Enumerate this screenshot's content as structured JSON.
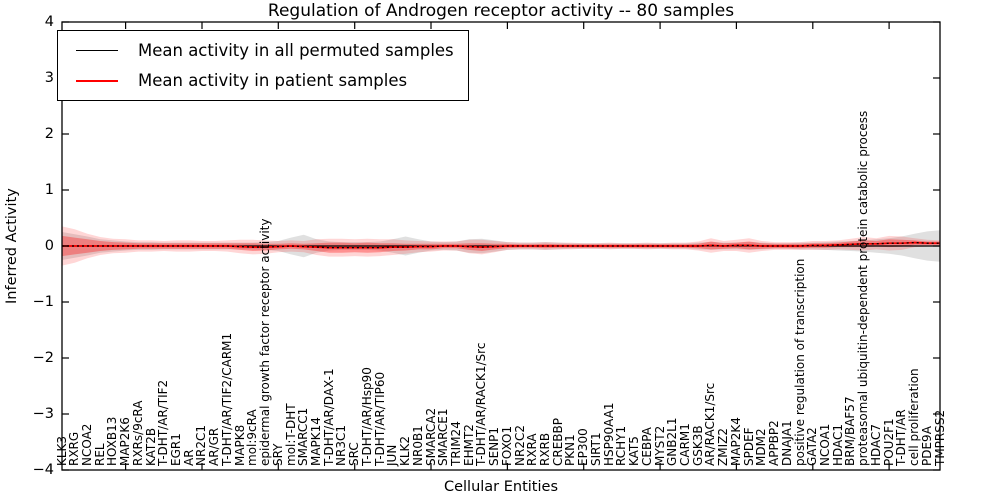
{
  "window": {
    "background": "#ffffff"
  },
  "chart_data": {
    "type": "line",
    "title": "Regulation of Androgen receptor activity -- 80 samples",
    "xlabel": "Cellular Entities",
    "ylabel": "Inferred Activity",
    "ylim": [
      -4,
      4
    ],
    "yticks": [
      4,
      3,
      2,
      1,
      0,
      -1,
      -2,
      -3,
      -4
    ],
    "grid": false,
    "legend": {
      "position": "upper left",
      "entries": [
        {
          "label": "Mean activity in all permuted samples",
          "color": "#000000"
        },
        {
          "label": "Mean activity in patient samples",
          "color": "#ff0000"
        }
      ]
    },
    "categories": [
      "KLK3",
      "RXRG",
      "NCOA2",
      "REL",
      "HOXB13",
      "MAP2K6",
      "RXRs/9cRA",
      "KAT2B",
      "T-DHT/AR/TIF2",
      "EGR1",
      "AR",
      "NR2C1",
      "AR/GR",
      "T-DHT/AR/TIF2/CARM1",
      "MAPK8",
      "mol:9cRA",
      "epidermal growth factor receptor activity",
      "SRY",
      "mol:T-DHT",
      "SMARCC1",
      "MAPK14",
      "T-DHT/AR/DAX-1",
      "NR3C1",
      "SRC",
      "T-DHT/AR/Hsp90",
      "T-DHT/AR/TIP60",
      "JUN",
      "KLK2",
      "NR0B1",
      "SMARCA2",
      "SMARCE1",
      "TRIM24",
      "EHMT2",
      "T-DHT/AR/RACK1/Src",
      "SENP1",
      "FOXO1",
      "NR2C2",
      "RXRA",
      "RXRB",
      "CREBBP",
      "PKN1",
      "EP300",
      "SIRT1",
      "HSP90AA1",
      "RCHY1",
      "KAT5",
      "CEBPA",
      "MYST2",
      "GNB2L1",
      "CARM1",
      "GSK3B",
      "AR/RACK1/Src",
      "ZMIZ2",
      "MAP2K4",
      "SPDEF",
      "MDM2",
      "APPBP2",
      "DNAJA1",
      "positive regulation of transcription",
      "GATA2",
      "NCOA1",
      "HDAC1",
      "BRM/BAF57",
      "proteasomal ubiquitin-dependent protein catabolic process",
      "HDAC7",
      "POU2F1",
      "T-DHT/AR",
      "cell proliferation",
      "PDE9A",
      "TMPRSS2"
    ],
    "series": [
      {
        "name": "Mean activity in all permuted samples",
        "color": "#000000",
        "values": [
          0,
          0,
          0,
          0,
          0,
          0,
          0,
          0,
          0,
          0,
          0,
          0,
          0,
          0,
          0,
          0,
          0,
          0,
          0,
          0,
          0,
          0,
          0,
          0,
          0,
          0,
          0,
          0,
          0,
          0,
          0,
          0,
          0,
          0,
          0,
          0,
          0,
          0,
          0,
          0,
          0,
          0,
          0,
          0,
          0,
          0,
          0,
          0,
          0,
          0,
          0,
          0,
          0,
          0,
          0,
          0,
          0,
          0,
          0,
          0,
          0,
          0,
          0,
          0,
          0,
          0,
          0,
          0,
          0,
          0
        ]
      },
      {
        "name": "Mean activity in patient samples",
        "color": "#ff0000",
        "values": [
          0,
          0,
          0,
          0,
          0,
          0,
          0,
          0,
          0,
          0,
          0,
          0,
          0,
          0,
          -0.01,
          -0.02,
          -0.02,
          -0.01,
          0,
          -0.01,
          -0.02,
          -0.03,
          -0.03,
          -0.03,
          -0.03,
          -0.03,
          -0.02,
          -0.02,
          -0.01,
          -0.01,
          0,
          0,
          -0.01,
          -0.02,
          -0.01,
          0,
          0,
          0,
          0,
          0,
          0,
          0,
          0,
          0,
          0,
          0,
          0,
          0,
          0,
          0,
          0,
          0.01,
          0,
          0.01,
          0.01,
          0,
          0,
          0,
          0,
          0.01,
          0.01,
          0.02,
          0.03,
          0.04,
          0.04,
          0.05,
          0.05,
          0.06,
          0.05,
          0.05
        ]
      }
    ],
    "bands": [
      {
        "name": "permuted-samples-spread",
        "color": "#999999",
        "opacity": 0.3,
        "center": "permuted",
        "half_widths": [
          0.25,
          0.21,
          0.17,
          0.12,
          0.1,
          0.08,
          0.07,
          0.07,
          0.06,
          0.06,
          0.06,
          0.06,
          0.06,
          0.06,
          0.06,
          0.06,
          0.07,
          0.09,
          0.15,
          0.2,
          0.12,
          0.08,
          0.07,
          0.07,
          0.07,
          0.08,
          0.12,
          0.17,
          0.12,
          0.08,
          0.07,
          0.08,
          0.12,
          0.13,
          0.1,
          0.07,
          0.06,
          0.06,
          0.07,
          0.06,
          0.05,
          0.05,
          0.05,
          0.05,
          0.05,
          0.05,
          0.05,
          0.05,
          0.05,
          0.05,
          0.06,
          0.07,
          0.06,
          0.06,
          0.07,
          0.06,
          0.05,
          0.05,
          0.06,
          0.06,
          0.07,
          0.08,
          0.09,
          0.1,
          0.12,
          0.14,
          0.17,
          0.22,
          0.26,
          0.28
        ]
      },
      {
        "name": "patient-samples-spread-outer",
        "color": "#ff0000",
        "opacity": 0.16,
        "center": "patient",
        "half_widths": [
          0.35,
          0.3,
          0.22,
          0.16,
          0.13,
          0.12,
          0.1,
          0.1,
          0.09,
          0.1,
          0.1,
          0.09,
          0.09,
          0.1,
          0.12,
          0.13,
          0.12,
          0.1,
          0.1,
          0.1,
          0.14,
          0.16,
          0.16,
          0.15,
          0.16,
          0.15,
          0.14,
          0.12,
          0.1,
          0.09,
          0.08,
          0.08,
          0.12,
          0.13,
          0.1,
          0.07,
          0.06,
          0.06,
          0.07,
          0.06,
          0.06,
          0.05,
          0.05,
          0.06,
          0.05,
          0.05,
          0.06,
          0.05,
          0.06,
          0.06,
          0.08,
          0.13,
          0.09,
          0.1,
          0.13,
          0.09,
          0.07,
          0.07,
          0.07,
          0.08,
          0.08,
          0.08,
          0.1,
          0.12,
          0.1,
          0.13,
          0.12,
          0.08,
          0.06,
          0.05
        ]
      },
      {
        "name": "patient-samples-spread-inner",
        "color": "#ff0000",
        "opacity": 0.32,
        "center": "patient",
        "half_widths": [
          0.18,
          0.15,
          0.12,
          0.09,
          0.07,
          0.06,
          0.05,
          0.05,
          0.05,
          0.05,
          0.05,
          0.05,
          0.05,
          0.05,
          0.06,
          0.07,
          0.06,
          0.05,
          0.05,
          0.05,
          0.07,
          0.09,
          0.09,
          0.08,
          0.09,
          0.08,
          0.07,
          0.06,
          0.05,
          0.05,
          0.04,
          0.04,
          0.06,
          0.07,
          0.05,
          0.04,
          0.03,
          0.03,
          0.04,
          0.03,
          0.03,
          0.03,
          0.03,
          0.03,
          0.03,
          0.03,
          0.03,
          0.03,
          0.03,
          0.03,
          0.04,
          0.07,
          0.05,
          0.05,
          0.07,
          0.05,
          0.04,
          0.04,
          0.04,
          0.04,
          0.04,
          0.04,
          0.05,
          0.06,
          0.05,
          0.07,
          0.06,
          0.04,
          0.03,
          0.03
        ]
      }
    ],
    "styles": {
      "patient_line_color": "#ff0000",
      "permuted_line_color": "#000000",
      "dotted_overlay_color": "#000000",
      "frame_color": "#000000"
    }
  }
}
